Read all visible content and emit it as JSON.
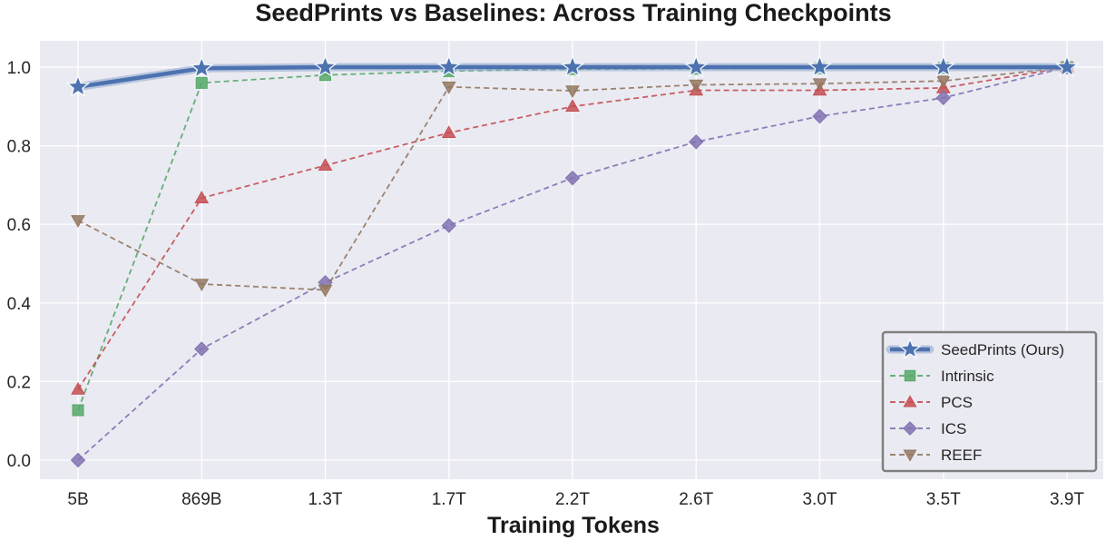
{
  "chart_data": {
    "type": "line",
    "title": "SeedPrints vs Baselines: Across Training Checkpoints",
    "xlabel": "Training Tokens",
    "ylabel": "",
    "categories": [
      "5B",
      "869B",
      "1.3T",
      "1.7T",
      "2.2T",
      "2.6T",
      "3.0T",
      "3.5T",
      "3.9T"
    ],
    "ylim": [
      -0.05,
      1.05
    ],
    "yticks": [
      "0.0",
      "0.2",
      "0.4",
      "0.6",
      "0.8",
      "1.0"
    ],
    "grid": true,
    "legend_position": "bottom-right",
    "background": "#eaeaf2",
    "series": [
      {
        "name": "SeedPrints (Ours)",
        "style": "solid",
        "marker": "star",
        "color": "#4c72b0",
        "values": [
          0.95,
          0.997,
          1.0,
          1.0,
          1.0,
          1.0,
          1.0,
          1.0,
          1.0
        ]
      },
      {
        "name": "Intrinsic",
        "style": "dashed",
        "marker": "square",
        "color": "#55a868",
        "values": [
          0.127,
          0.96,
          0.98,
          0.99,
          0.995,
          0.996,
          0.997,
          0.998,
          1.0
        ]
      },
      {
        "name": "PCS",
        "style": "dashed",
        "marker": "triangle-up",
        "color": "#c44e52",
        "values": [
          0.18,
          0.667,
          0.75,
          0.833,
          0.9,
          0.941,
          0.941,
          0.947,
          1.0
        ]
      },
      {
        "name": "ICS",
        "style": "dashed",
        "marker": "diamond",
        "color": "#8172b2",
        "values": [
          0.0,
          0.283,
          0.452,
          0.597,
          0.718,
          0.81,
          0.875,
          0.922,
          1.0
        ]
      },
      {
        "name": "REEF",
        "style": "dashed",
        "marker": "triangle-down",
        "color": "#937860",
        "values": [
          0.61,
          0.448,
          0.433,
          0.95,
          0.94,
          0.955,
          0.958,
          0.965,
          1.0
        ]
      }
    ]
  }
}
